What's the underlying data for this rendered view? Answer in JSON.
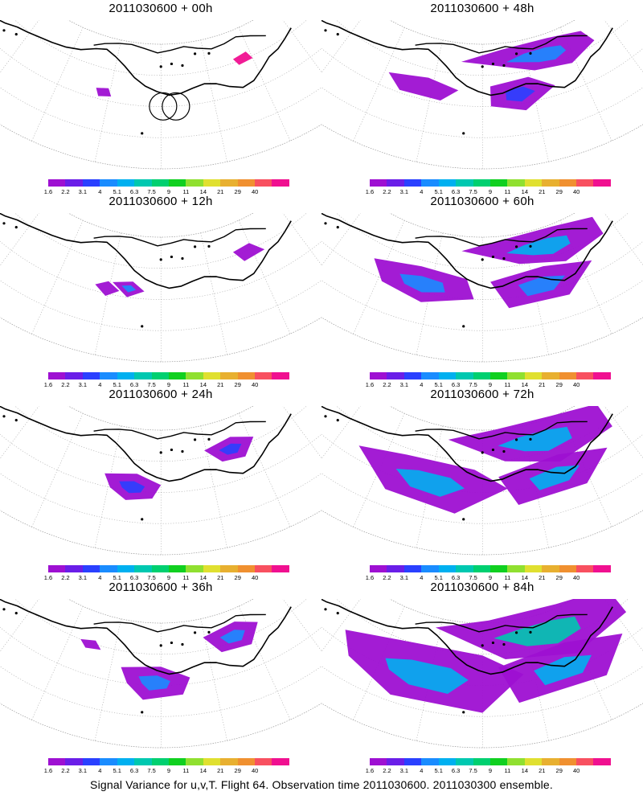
{
  "panels": [
    {
      "title": "2011030600 + 00h",
      "spread": 0
    },
    {
      "title": "2011030600 + 48h",
      "spread": 4
    },
    {
      "title": "2011030600 + 12h",
      "spread": 1
    },
    {
      "title": "2011030600 + 60h",
      "spread": 5
    },
    {
      "title": "2011030600 + 24h",
      "spread": 2
    },
    {
      "title": "2011030600 + 72h",
      "spread": 6
    },
    {
      "title": "2011030600 + 36h",
      "spread": 3
    },
    {
      "title": "2011030600 + 84h",
      "spread": 7
    }
  ],
  "colorbar": {
    "labels": [
      "1.6",
      "2.2",
      "3.1",
      "4",
      "5.1",
      "6.3",
      "7.5",
      "9",
      "11",
      "14",
      "21",
      "29",
      "40"
    ],
    "colors": [
      "#9e10d2",
      "#6a1ee8",
      "#2a40ff",
      "#1a8cff",
      "#00b0f0",
      "#00c8b0",
      "#00d070",
      "#10d020",
      "#90e030",
      "#e0e030",
      "#e8b030",
      "#f09030",
      "#f85060",
      "#f01090"
    ]
  },
  "caption": "Signal Variance for u,v,T. Flight 64. Observation time 2011030600. 2011030300 ensemble."
}
